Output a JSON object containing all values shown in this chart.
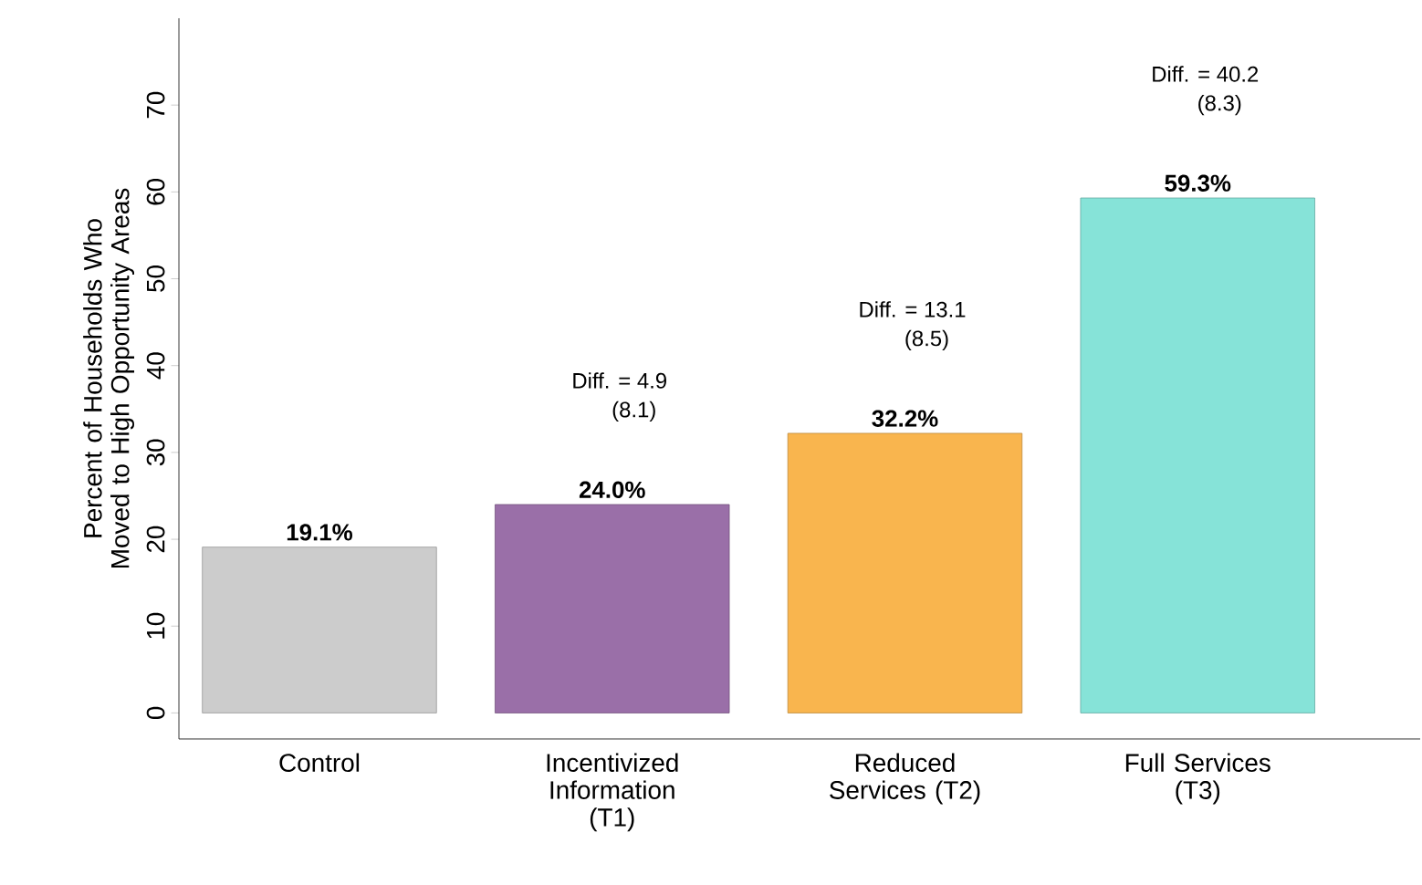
{
  "chart_data": {
    "type": "bar",
    "ylabel": "Percent of Households Who Moved to High Opportunity Areas",
    "categories": [
      "Control",
      "Incentivized Information (T1)",
      "Reduced Services (T2)",
      "Full Services (T3)"
    ],
    "values": [
      19.1,
      24.0,
      32.2,
      59.3
    ],
    "colors": [
      "#cccccc",
      "#9a6fa8",
      "#f9b54e",
      "#86e3d8"
    ],
    "value_labels": [
      "19.1%",
      "24.0%",
      "32.2%",
      "59.3%"
    ],
    "annotations": [
      "Diff. = 4.9",
      "(8.1)",
      "Diff. = 13.1",
      "(8.5)",
      "Diff. = 40.2",
      "(8.3)"
    ],
    "ylim": [
      -3,
      80
    ],
    "yticks": [
      0,
      10,
      20,
      30,
      40,
      50,
      60,
      70
    ]
  }
}
